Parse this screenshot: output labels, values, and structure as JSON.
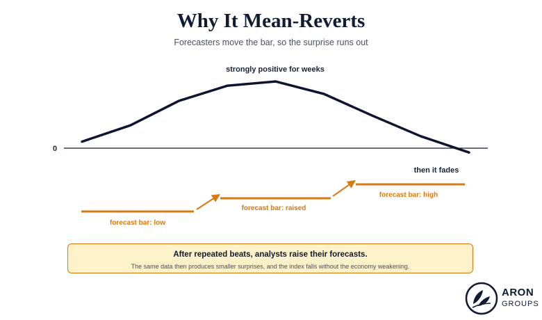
{
  "header": {
    "title": "Why It Mean-Reverts",
    "subtitle": "Forecasters move the bar, so the surprise runs out"
  },
  "diagram": {
    "zero_label": "0",
    "peak_label": "strongly positive for weeks",
    "fade_label": "then it fades",
    "surprise_curve": [
      0.12,
      0.42,
      0.87,
      1.15,
      1.23,
      1.0,
      0.6,
      0.22,
      -0.08
    ],
    "forecast_bars": [
      {
        "label": "forecast bar: low"
      },
      {
        "label": "forecast bar: raised"
      },
      {
        "label": "forecast bar: high"
      }
    ],
    "colors": {
      "curve": "#0d1630",
      "forecast": "#d9790f",
      "axis": "#101a33"
    }
  },
  "note": {
    "heading": "After repeated beats, analysts raise their forecasts.",
    "body": "The same data then produces smaller surprises, and the index falls without the economy weakening."
  },
  "logo": {
    "name": "ARON",
    "sub": "GROUPS"
  }
}
